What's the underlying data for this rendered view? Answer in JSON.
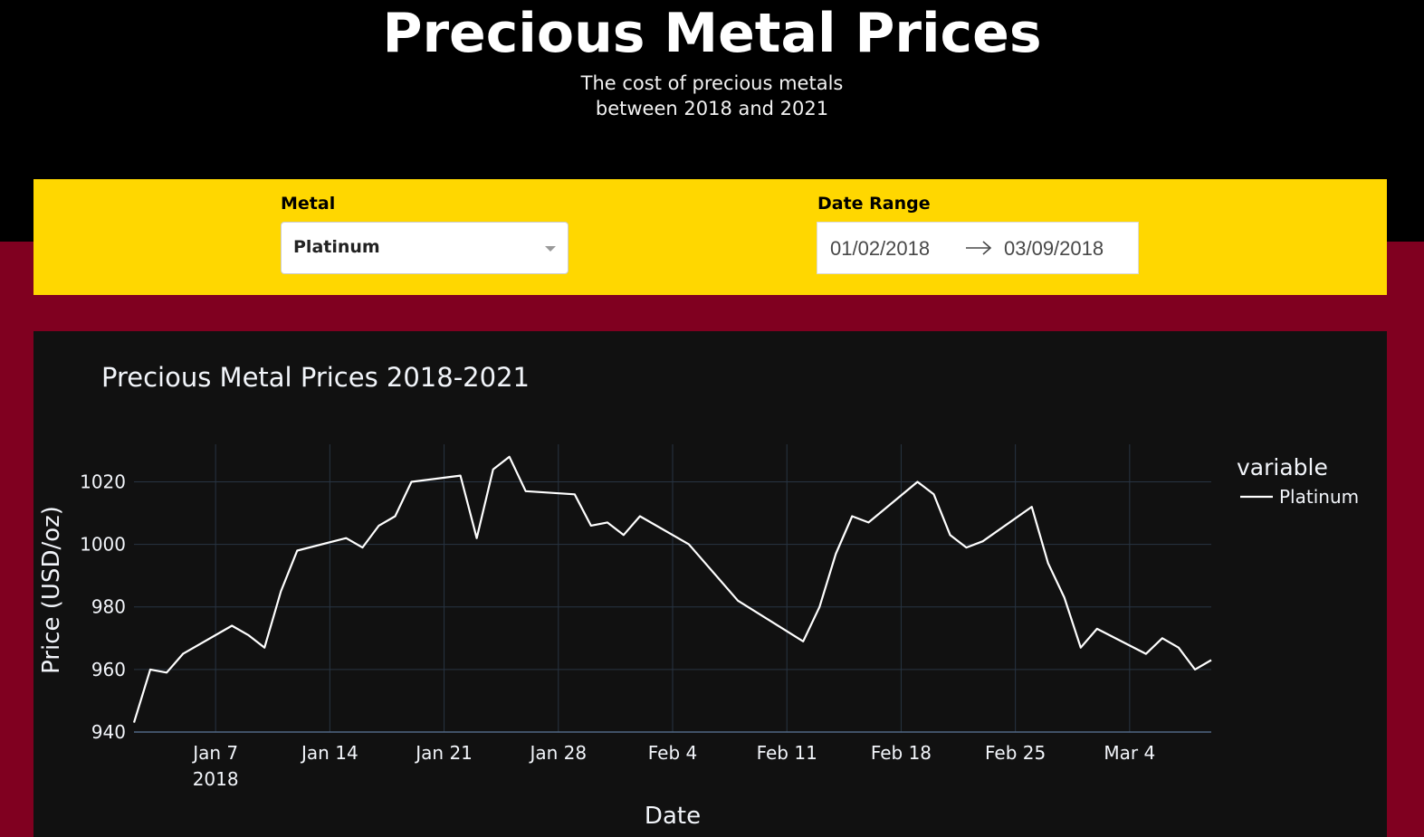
{
  "header": {
    "title": "Precious Metal Prices",
    "subtitle_line1": "The cost of precious metals",
    "subtitle_line2": "between 2018 and 2021"
  },
  "controls": {
    "metal_label": "Metal",
    "metal_value": "Platinum",
    "date_label": "Date Range",
    "start_date": "01/02/2018",
    "end_date": "03/09/2018"
  },
  "colors": {
    "header_bg": "#000000",
    "controls_bg": "#FFD700",
    "page_bg": "#800020",
    "chart_bg": "#111111",
    "line": "#ffffff"
  },
  "chart_data": {
    "type": "line",
    "title": "Precious Metal Prices 2018-2021",
    "xlabel": "Date",
    "ylabel": "Price (USD/oz)",
    "legend_title": "variable",
    "legend_position": "top-right",
    "grid": true,
    "ylim": [
      940,
      1032
    ],
    "xlim": [
      "2018-01-02",
      "2018-03-09"
    ],
    "yticks": [
      940,
      960,
      980,
      1000,
      1020
    ],
    "xticks": [
      {
        "date": "2018-01-07",
        "label": "Jan 7",
        "sublabel": "2018"
      },
      {
        "date": "2018-01-14",
        "label": "Jan 14"
      },
      {
        "date": "2018-01-21",
        "label": "Jan 21"
      },
      {
        "date": "2018-01-28",
        "label": "Jan 28"
      },
      {
        "date": "2018-02-04",
        "label": "Feb 4"
      },
      {
        "date": "2018-02-11",
        "label": "Feb 11"
      },
      {
        "date": "2018-02-18",
        "label": "Feb 18"
      },
      {
        "date": "2018-02-25",
        "label": "Feb 25"
      },
      {
        "date": "2018-03-04",
        "label": "Mar 4"
      }
    ],
    "series": [
      {
        "name": "Platinum",
        "points": [
          [
            "2018-01-02",
            943
          ],
          [
            "2018-01-03",
            960
          ],
          [
            "2018-01-04",
            959
          ],
          [
            "2018-01-05",
            965
          ],
          [
            "2018-01-08",
            974
          ],
          [
            "2018-01-09",
            971
          ],
          [
            "2018-01-10",
            967
          ],
          [
            "2018-01-11",
            985
          ],
          [
            "2018-01-12",
            998
          ],
          [
            "2018-01-15",
            1002
          ],
          [
            "2018-01-16",
            999
          ],
          [
            "2018-01-17",
            1006
          ],
          [
            "2018-01-18",
            1009
          ],
          [
            "2018-01-19",
            1020
          ],
          [
            "2018-01-22",
            1022
          ],
          [
            "2018-01-23",
            1002
          ],
          [
            "2018-01-24",
            1024
          ],
          [
            "2018-01-25",
            1028
          ],
          [
            "2018-01-26",
            1017
          ],
          [
            "2018-01-29",
            1016
          ],
          [
            "2018-01-30",
            1006
          ],
          [
            "2018-01-31",
            1007
          ],
          [
            "2018-02-01",
            1003
          ],
          [
            "2018-02-02",
            1009
          ],
          [
            "2018-02-05",
            1000
          ],
          [
            "2018-02-08",
            982
          ],
          [
            "2018-02-12",
            969
          ],
          [
            "2018-02-13",
            980
          ],
          [
            "2018-02-14",
            997
          ],
          [
            "2018-02-15",
            1009
          ],
          [
            "2018-02-16",
            1007
          ],
          [
            "2018-02-19",
            1020
          ],
          [
            "2018-02-20",
            1016
          ],
          [
            "2018-02-21",
            1003
          ],
          [
            "2018-02-22",
            999
          ],
          [
            "2018-02-23",
            1001
          ],
          [
            "2018-02-26",
            1012
          ],
          [
            "2018-02-27",
            994
          ],
          [
            "2018-02-28",
            983
          ],
          [
            "2018-03-01",
            967
          ],
          [
            "2018-03-02",
            973
          ],
          [
            "2018-03-05",
            965
          ],
          [
            "2018-03-06",
            970
          ],
          [
            "2018-03-07",
            967
          ],
          [
            "2018-03-08",
            960
          ],
          [
            "2018-03-09",
            963
          ]
        ]
      }
    ]
  }
}
